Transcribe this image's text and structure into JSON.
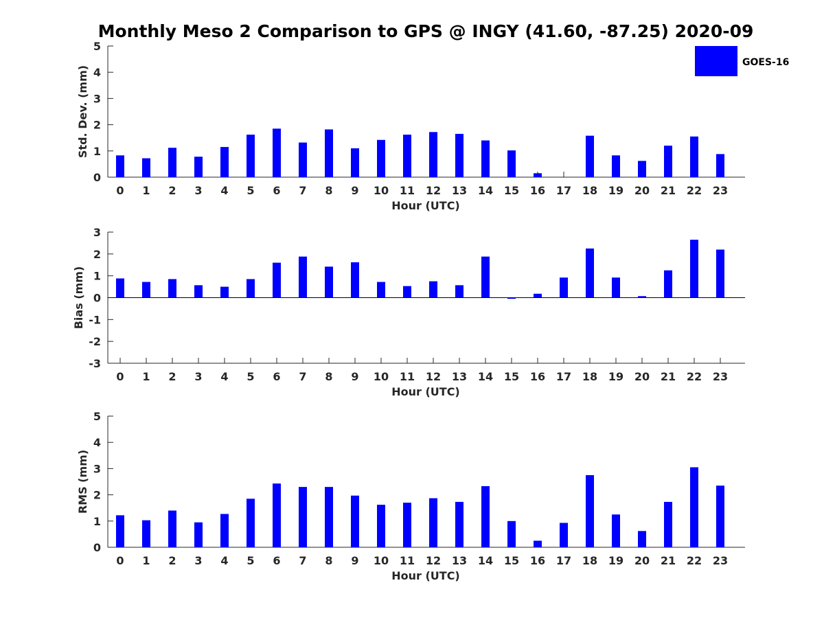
{
  "title": "Monthly Meso 2 Comparison to GPS @ INGY (41.60, -87.25) 2020-09",
  "legend": {
    "label": "GOES-16",
    "color": "#0000ff"
  },
  "chart_data": [
    {
      "type": "bar",
      "ylabel": "Std. Dev. (mm)",
      "xlabel": "Hour (UTC)",
      "ylim": [
        0,
        5
      ],
      "yticks": [
        0,
        1,
        2,
        3,
        4,
        5
      ],
      "categories": [
        "0",
        "1",
        "2",
        "3",
        "4",
        "5",
        "6",
        "7",
        "8",
        "9",
        "10",
        "11",
        "12",
        "13",
        "14",
        "15",
        "16",
        "17",
        "18",
        "19",
        "20",
        "21",
        "22",
        "23"
      ],
      "series": [
        {
          "name": "GOES-16",
          "values": [
            0.83,
            0.72,
            1.12,
            0.78,
            1.15,
            1.62,
            1.85,
            1.32,
            1.82,
            1.1,
            1.42,
            1.62,
            1.72,
            1.65,
            1.4,
            1.02,
            0.15,
            0.0,
            1.58,
            0.83,
            0.62,
            1.2,
            1.55,
            0.88
          ]
        }
      ],
      "color": "#0000ff",
      "legend_position": "top-right"
    },
    {
      "type": "bar",
      "ylabel": "Bias (mm)",
      "xlabel": "Hour (UTC)",
      "ylim": [
        -3,
        3
      ],
      "yticks": [
        -3,
        -2,
        -1,
        0,
        1,
        2,
        3
      ],
      "categories": [
        "0",
        "1",
        "2",
        "3",
        "4",
        "5",
        "6",
        "7",
        "8",
        "9",
        "10",
        "11",
        "12",
        "13",
        "14",
        "15",
        "16",
        "17",
        "18",
        "19",
        "20",
        "21",
        "22",
        "23"
      ],
      "series": [
        {
          "name": "GOES-16",
          "values": [
            0.88,
            0.72,
            0.85,
            0.57,
            0.5,
            0.85,
            1.6,
            1.88,
            1.42,
            1.62,
            0.72,
            0.53,
            0.75,
            0.57,
            1.88,
            -0.05,
            0.18,
            0.92,
            2.25,
            0.92,
            0.07,
            1.25,
            2.65,
            2.2
          ]
        }
      ],
      "color": "#0000ff"
    },
    {
      "type": "bar",
      "ylabel": "RMS (mm)",
      "xlabel": "Hour (UTC)",
      "ylim": [
        0,
        5
      ],
      "yticks": [
        0,
        1,
        2,
        3,
        4,
        5
      ],
      "categories": [
        "0",
        "1",
        "2",
        "3",
        "4",
        "5",
        "6",
        "7",
        "8",
        "9",
        "10",
        "11",
        "12",
        "13",
        "14",
        "15",
        "16",
        "17",
        "18",
        "19",
        "20",
        "21",
        "22",
        "23"
      ],
      "series": [
        {
          "name": "GOES-16",
          "values": [
            1.22,
            1.03,
            1.4,
            0.95,
            1.27,
            1.85,
            2.43,
            2.3,
            2.3,
            1.97,
            1.62,
            1.7,
            1.87,
            1.73,
            2.33,
            1.0,
            0.25,
            0.93,
            2.75,
            1.25,
            0.62,
            1.73,
            3.05,
            2.35
          ]
        }
      ],
      "color": "#0000ff"
    }
  ]
}
